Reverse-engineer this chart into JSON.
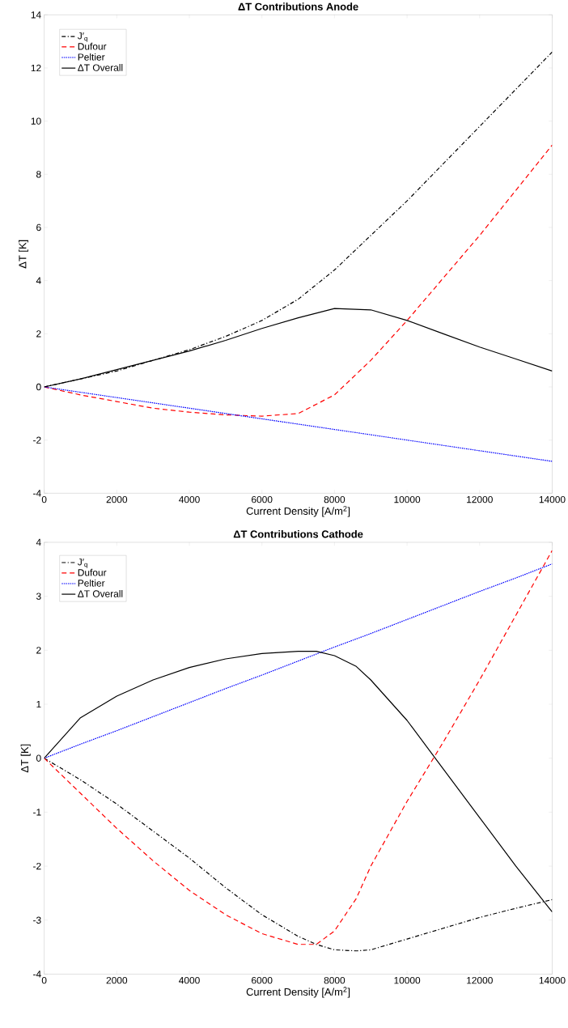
{
  "chart_data": [
    {
      "type": "line",
      "title": "ΔT Contributions Anode",
      "xlabel": "Current Density [A/m$^{2}$]",
      "ylabel": "ΔT [K]",
      "x": [
        0,
        1000,
        2000,
        3000,
        4000,
        5000,
        6000,
        7000,
        8000,
        9000,
        10000,
        11000,
        12000,
        13000,
        14000
      ],
      "series": [
        {
          "name": "J′$_{q}$",
          "color": "#000000",
          "line_style": "dashdot",
          "values": [
            0,
            0.3,
            0.6,
            1.0,
            1.4,
            1.9,
            2.5,
            3.3,
            4.4,
            5.7,
            7.0,
            8.4,
            9.8,
            11.2,
            12.6
          ]
        },
        {
          "name": "Dufour",
          "color": "#ff0000",
          "line_style": "dashed",
          "values": [
            0,
            -0.3,
            -0.55,
            -0.8,
            -0.95,
            -1.05,
            -1.1,
            -1.0,
            -0.3,
            1.0,
            2.5,
            4.1,
            5.7,
            7.4,
            9.1
          ]
        },
        {
          "name": "Peltier",
          "color": "#0000ff",
          "line_style": "dotted",
          "values": [
            0,
            -0.2,
            -0.4,
            -0.6,
            -0.8,
            -1.0,
            -1.2,
            -1.4,
            -1.6,
            -1.8,
            -2.0,
            -2.2,
            -2.4,
            -2.6,
            -2.8
          ]
        },
        {
          "name": "ΔT Overall",
          "color": "#000000",
          "line_style": "solid",
          "values": [
            0,
            0.3,
            0.65,
            1.0,
            1.35,
            1.75,
            2.2,
            2.6,
            2.95,
            2.9,
            2.5,
            2.0,
            1.5,
            1.05,
            0.6
          ]
        }
      ],
      "xlim": [
        0,
        14000
      ],
      "ylim": [
        -4,
        14
      ],
      "xticks": [
        0,
        2000,
        4000,
        6000,
        8000,
        10000,
        12000,
        14000
      ],
      "yticks": [
        -4,
        -2,
        0,
        2,
        4,
        6,
        8,
        10,
        12,
        14
      ],
      "grid": false,
      "legend": "top left",
      "marker": "none"
    },
    {
      "type": "line",
      "title": "ΔT Contributions Cathode",
      "xlabel": "Current Density [A/m$^{2}$]",
      "ylabel": "ΔT [K]",
      "x": [
        0,
        1000,
        2000,
        3000,
        4000,
        5000,
        6000,
        7000,
        7500,
        8000,
        8600,
        9000,
        10000,
        11000,
        12000,
        13000,
        14000
      ],
      "series": [
        {
          "name": "J′$_{q}$",
          "color": "#000000",
          "line_style": "dashdot",
          "values": [
            0,
            -0.4,
            -0.85,
            -1.35,
            -1.85,
            -2.4,
            -2.9,
            -3.3,
            -3.45,
            -3.55,
            -3.57,
            -3.55,
            -3.35,
            -3.15,
            -2.95,
            -2.78,
            -2.62
          ]
        },
        {
          "name": "Dufour",
          "color": "#ff0000",
          "line_style": "dashed",
          "values": [
            0,
            -0.65,
            -1.3,
            -1.9,
            -2.45,
            -2.9,
            -3.25,
            -3.45,
            -3.45,
            -3.2,
            -2.6,
            -2.0,
            -0.8,
            0.3,
            1.45,
            2.65,
            3.85
          ]
        },
        {
          "name": "Peltier",
          "color": "#0000ff",
          "line_style": "dotted",
          "values": [
            0,
            0.26,
            0.51,
            0.77,
            1.03,
            1.29,
            1.54,
            1.8,
            1.93,
            2.06,
            2.21,
            2.31,
            2.57,
            2.83,
            3.09,
            3.34,
            3.6
          ]
        },
        {
          "name": "ΔT Overall",
          "color": "#000000",
          "line_style": "solid",
          "values": [
            0,
            0.75,
            1.15,
            1.45,
            1.68,
            1.84,
            1.94,
            1.98,
            1.98,
            1.9,
            1.7,
            1.45,
            0.7,
            -0.2,
            -1.1,
            -2.0,
            -2.85
          ]
        }
      ],
      "xlim": [
        0,
        14000
      ],
      "ylim": [
        -4,
        4
      ],
      "xticks": [
        0,
        2000,
        4000,
        6000,
        8000,
        10000,
        12000,
        14000
      ],
      "yticks": [
        -4,
        -3,
        -2,
        -1,
        0,
        1,
        2,
        3,
        4
      ],
      "grid": false,
      "legend": "top left",
      "marker": "none"
    }
  ]
}
